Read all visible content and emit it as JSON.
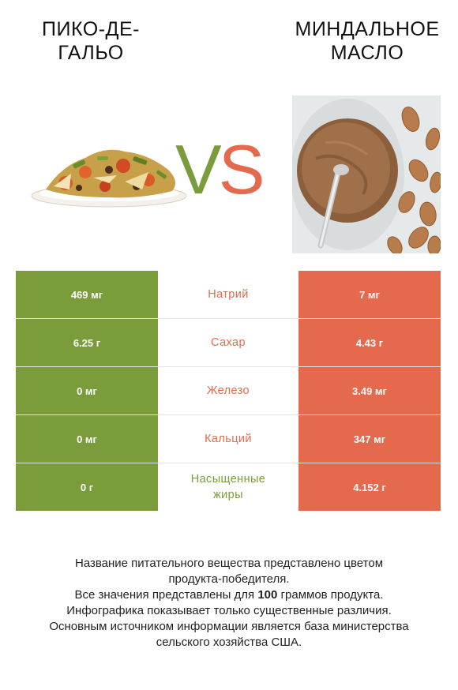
{
  "left_food": {
    "name": "Пико-де-гальо",
    "title_lines": [
      "ПИКО-ДЕ-",
      "ГАЛЬО"
    ]
  },
  "right_food": {
    "name": "Миндальное масло",
    "title_lines": [
      "МИНДАЛЬНОЕ",
      "МАСЛО"
    ]
  },
  "vs": {
    "v": "V",
    "s": "S"
  },
  "colors": {
    "left": "#7a9c3a",
    "right": "#e56a4d"
  },
  "rows": [
    {
      "left": "469 мг",
      "nutrient": "Натрий",
      "right": "7 мг",
      "winner": "right"
    },
    {
      "left": "6.25 г",
      "nutrient": "Сахар",
      "right": "4.43 г",
      "winner": "right"
    },
    {
      "left": "0 мг",
      "nutrient": "Железо",
      "right": "3.49 мг",
      "winner": "right"
    },
    {
      "left": "0 мг",
      "nutrient": "Кальций",
      "right": "347 мг",
      "winner": "right"
    },
    {
      "left": "0 г",
      "nutrient_lines": [
        "Насыщенные",
        "жиры"
      ],
      "right": "4.152 г",
      "winner": "left"
    }
  ],
  "notes": {
    "line1": "Название питательного вещества представлено цветом",
    "line2": "продукта-победителя.",
    "line3_pre": "Все значения представлены для ",
    "line3_bold": "100",
    "line3_post": " граммов продукта.",
    "line4": "Инфографика показывает только существенные различия.",
    "line5": "Основным источником информации является база министерства",
    "line6": "сельского хозяйства США."
  }
}
